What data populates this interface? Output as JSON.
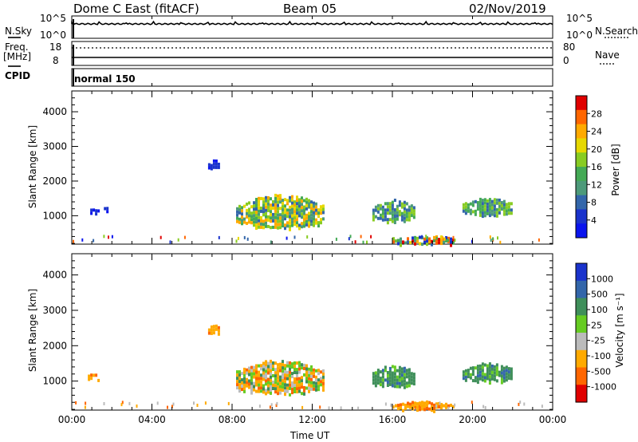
{
  "header": {
    "title": "Dome C East (fitACF)",
    "beam": "Beam 05",
    "date": "02/Nov/2019"
  },
  "strip": {
    "nsky_label": "N.Sky",
    "nsearch_label": "N.Search",
    "freq_label": "Freq.",
    "freq_unit": "[MHz]",
    "nave_label": "Nave",
    "cpid_label": "CPID",
    "cpid_value": "normal 150",
    "noise_ticks": [
      "10^5",
      "10^0"
    ],
    "freq_ticks": [
      "18",
      "8"
    ],
    "nave_ticks": [
      "80",
      "0"
    ]
  },
  "power_colorbar": {
    "label": "Power [dB]",
    "ticks": [
      "28",
      "24",
      "20",
      "16",
      "12",
      "8",
      "4"
    ],
    "colors": [
      "#e00000",
      "#ff6600",
      "#ffaa00",
      "#e6d800",
      "#88cc22",
      "#44aa55",
      "#4d9a7a",
      "#3366aa",
      "#1a33cc",
      "#0a14ee"
    ]
  },
  "velocity_colorbar": {
    "label": "Velocity [m s⁻¹]",
    "ticks": [
      "1000",
      "500",
      "100",
      "25",
      "-25",
      "-100",
      "-500",
      "-1000"
    ],
    "colors": [
      "#1a33cc",
      "#3366aa",
      "#3f8f5a",
      "#66cc22",
      "#bbbbbb",
      "#ffaa00",
      "#ff6600",
      "#e00000"
    ]
  },
  "chart_data": [
    {
      "type": "heatmap",
      "title": "Power",
      "xlabel": "",
      "ylabel": "Slant Range [km]",
      "xlim": [
        0,
        24
      ],
      "ylim": [
        180,
        4600
      ],
      "x_ticks": [
        "00:00",
        "04:00",
        "08:00",
        "12:00",
        "16:00",
        "20:00",
        "00:00"
      ],
      "y_ticks": [
        1000,
        2000,
        3000,
        4000
      ],
      "echo_regions": [
        {
          "t": [
            0.8,
            1.3
          ],
          "r": [
            1050,
            1200
          ],
          "level": "low"
        },
        {
          "t": [
            1.6,
            1.8
          ],
          "r": [
            1150,
            1250
          ],
          "level": "low"
        },
        {
          "t": [
            6.8,
            7.3
          ],
          "r": [
            2350,
            2600
          ],
          "level": "low"
        },
        {
          "t": [
            8.2,
            12.6
          ],
          "r": [
            650,
            1600
          ],
          "level": "high"
        },
        {
          "t": [
            15.0,
            17.1
          ],
          "r": [
            850,
            1450
          ],
          "level": "mid"
        },
        {
          "t": [
            16.0,
            19.0
          ],
          "r": [
            200,
            420
          ],
          "level": "mixed"
        },
        {
          "t": [
            19.5,
            22.0
          ],
          "r": [
            1000,
            1500
          ],
          "level": "mid"
        }
      ]
    },
    {
      "type": "heatmap",
      "title": "Velocity",
      "xlabel": "Time UT",
      "ylabel": "Slant Range [km]",
      "xlim": [
        0,
        24
      ],
      "ylim": [
        180,
        4600
      ],
      "x_ticks": [
        "00:00",
        "04:00",
        "08:00",
        "12:00",
        "16:00",
        "20:00",
        "00:00"
      ],
      "y_ticks": [
        1000,
        2000,
        3000,
        4000
      ],
      "echo_regions": [
        {
          "t": [
            0.8,
            1.3
          ],
          "r": [
            1050,
            1200
          ],
          "velocity": "-100"
        },
        {
          "t": [
            6.8,
            7.3
          ],
          "r": [
            2350,
            2600
          ],
          "velocity": "-100"
        },
        {
          "t": [
            8.2,
            12.6
          ],
          "r": [
            650,
            1600
          ],
          "velocity": "mixed -500..100"
        },
        {
          "t": [
            15.0,
            17.1
          ],
          "r": [
            850,
            1450
          ],
          "velocity": "100"
        },
        {
          "t": [
            16.0,
            19.0
          ],
          "r": [
            200,
            420
          ],
          "velocity": "-100"
        },
        {
          "t": [
            19.5,
            22.0
          ],
          "r": [
            1000,
            1500
          ],
          "velocity": "100"
        }
      ]
    }
  ]
}
